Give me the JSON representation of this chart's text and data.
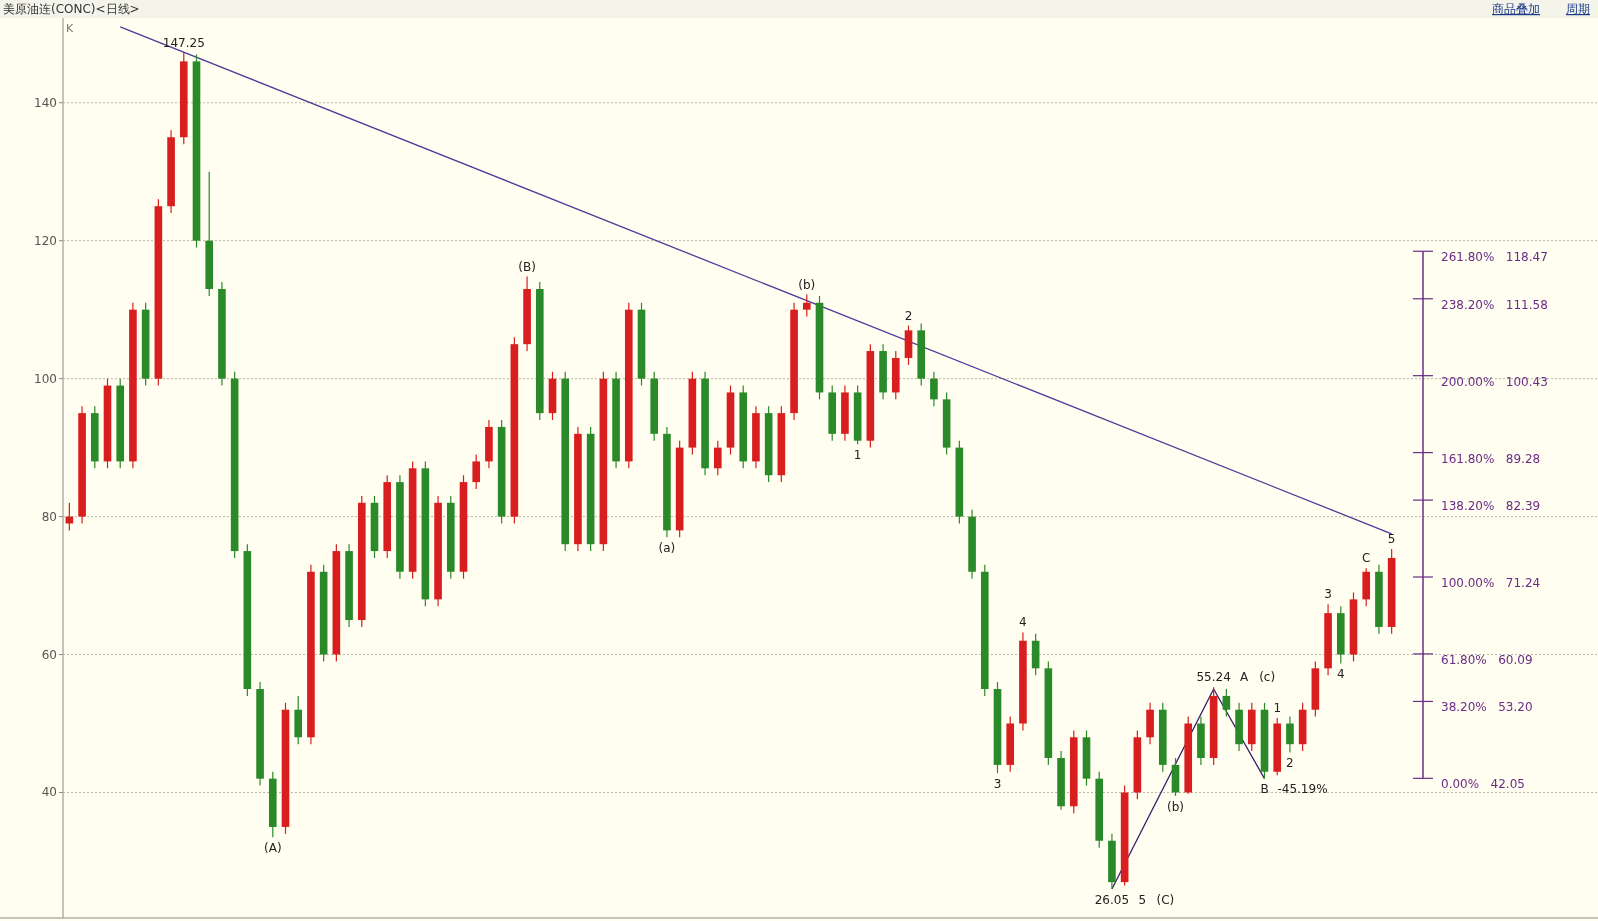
{
  "chart_data": {
    "type": "candlestick",
    "title": "美原油连(CONC)<日线>",
    "ylabel": "K",
    "categories": [
      null,
      null,
      null,
      null,
      null,
      null,
      null,
      null,
      null,
      null,
      null,
      null,
      null,
      null,
      null,
      null,
      null,
      null,
      null,
      null,
      null,
      null,
      null,
      null,
      null,
      null,
      null,
      null,
      null,
      null,
      null,
      null,
      null,
      null,
      null,
      null,
      null,
      null,
      null,
      null,
      null,
      null,
      null,
      null,
      null,
      null,
      null,
      null,
      null,
      null,
      null,
      null,
      null,
      null,
      null,
      null,
      null,
      null,
      null,
      null,
      null,
      null,
      null,
      null,
      null,
      null,
      null,
      null,
      null,
      null,
      null,
      null,
      null,
      null,
      null,
      null,
      null,
      null,
      null,
      null,
      null,
      null,
      null,
      null,
      null,
      null,
      null,
      null,
      null,
      null,
      null,
      null,
      null,
      null,
      null,
      null,
      null,
      null,
      null,
      null,
      null,
      null,
      null,
      null,
      null
    ],
    "ohlc": [
      [
        79,
        82,
        78,
        80
      ],
      [
        80,
        96,
        79,
        95
      ],
      [
        95,
        96,
        87,
        88
      ],
      [
        88,
        100,
        87,
        99
      ],
      [
        99,
        100,
        87,
        88
      ],
      [
        88,
        111,
        87,
        110
      ],
      [
        110,
        111,
        99,
        100
      ],
      [
        100,
        126,
        99,
        125
      ],
      [
        125,
        136,
        124,
        135
      ],
      [
        135,
        147.25,
        134,
        146
      ],
      [
        146,
        147,
        119,
        120
      ],
      [
        120,
        130,
        112,
        113
      ],
      [
        113,
        114,
        99,
        100
      ],
      [
        100,
        101,
        74,
        75
      ],
      [
        75,
        76,
        54,
        55
      ],
      [
        55,
        56,
        41,
        42
      ],
      [
        42,
        43,
        33.5,
        35
      ],
      [
        35,
        53,
        34,
        52
      ],
      [
        52,
        54,
        47,
        48
      ],
      [
        48,
        73,
        47,
        72
      ],
      [
        72,
        73,
        59,
        60
      ],
      [
        60,
        76,
        59,
        75
      ],
      [
        75,
        76,
        64,
        65
      ],
      [
        65,
        83,
        64,
        82
      ],
      [
        82,
        83,
        74,
        75
      ],
      [
        75,
        86,
        74,
        85
      ],
      [
        85,
        86,
        71,
        72
      ],
      [
        72,
        88,
        71,
        87
      ],
      [
        87,
        88,
        67,
        68
      ],
      [
        68,
        83,
        67,
        82
      ],
      [
        82,
        83,
        71,
        72
      ],
      [
        72,
        86,
        71,
        85
      ],
      [
        85,
        89,
        84,
        88
      ],
      [
        88,
        94,
        87,
        93
      ],
      [
        93,
        94,
        79,
        80
      ],
      [
        80,
        106,
        79,
        105
      ],
      [
        105,
        114.8,
        104,
        113
      ],
      [
        113,
        114,
        94,
        95
      ],
      [
        95,
        101,
        94,
        100
      ],
      [
        100,
        101,
        75,
        76
      ],
      [
        76,
        93,
        75,
        92
      ],
      [
        92,
        93,
        75,
        76
      ],
      [
        76,
        101,
        75,
        100
      ],
      [
        100,
        101,
        87,
        88
      ],
      [
        88,
        111,
        87,
        110
      ],
      [
        110,
        111,
        99,
        100
      ],
      [
        100,
        101,
        91,
        92
      ],
      [
        92,
        93,
        77,
        78
      ],
      [
        78,
        91,
        77,
        90
      ],
      [
        90,
        101,
        89,
        100
      ],
      [
        100,
        101,
        86,
        87
      ],
      [
        87,
        91,
        86,
        90
      ],
      [
        90,
        99,
        89,
        98
      ],
      [
        98,
        99,
        87,
        88
      ],
      [
        88,
        96,
        87,
        95
      ],
      [
        95,
        96,
        85,
        86
      ],
      [
        86,
        96,
        85,
        95
      ],
      [
        95,
        111,
        94,
        110
      ],
      [
        110,
        112.2,
        109,
        111
      ],
      [
        111,
        112,
        97,
        98
      ],
      [
        98,
        99,
        91,
        92
      ],
      [
        92,
        99,
        91,
        98
      ],
      [
        98,
        99,
        90.5,
        91
      ],
      [
        91,
        105,
        90,
        104
      ],
      [
        104,
        105,
        97,
        98
      ],
      [
        98,
        104,
        97,
        103
      ],
      [
        103,
        107.7,
        102,
        107
      ],
      [
        107,
        108,
        99,
        100
      ],
      [
        100,
        101,
        96,
        97
      ],
      [
        97,
        98,
        89,
        90
      ],
      [
        90,
        91,
        79,
        80
      ],
      [
        80,
        81,
        71,
        72
      ],
      [
        72,
        73,
        54,
        55
      ],
      [
        55,
        56,
        42.8,
        44
      ],
      [
        44,
        51,
        43,
        50
      ],
      [
        50,
        63.2,
        49,
        62
      ],
      [
        62,
        63,
        57,
        58
      ],
      [
        58,
        59,
        44,
        45
      ],
      [
        45,
        46,
        37.5,
        38
      ],
      [
        38,
        49,
        37,
        48
      ],
      [
        48,
        49,
        41,
        42
      ],
      [
        42,
        43,
        32,
        33
      ],
      [
        33,
        34,
        26.05,
        27
      ],
      [
        27,
        41,
        26.5,
        40
      ],
      [
        40,
        49,
        39,
        48
      ],
      [
        48,
        53,
        47,
        52
      ],
      [
        52,
        53,
        43,
        44
      ],
      [
        44,
        45,
        39.5,
        40
      ],
      [
        40,
        51,
        39.8,
        50
      ],
      [
        50,
        51,
        44,
        45
      ],
      [
        45,
        55.24,
        44,
        54
      ],
      [
        54,
        55,
        51,
        52
      ],
      [
        52,
        53,
        46,
        47
      ],
      [
        47,
        53,
        46,
        52
      ],
      [
        52,
        53,
        42.05,
        43
      ],
      [
        43,
        50.8,
        42.5,
        50
      ],
      [
        50,
        51,
        45.8,
        47
      ],
      [
        47,
        53,
        46,
        52
      ],
      [
        52,
        59,
        51,
        58
      ],
      [
        58,
        67.3,
        57,
        66
      ],
      [
        66,
        67,
        58.7,
        60
      ],
      [
        60,
        69,
        59,
        68
      ],
      [
        68,
        72.5,
        67,
        72
      ],
      [
        72,
        73,
        63,
        64
      ],
      [
        64,
        75.3,
        63,
        74
      ]
    ],
    "series": [
      {
        "type": "line",
        "color": "#4b3b9a",
        "values": [
          null,
          null,
          null,
          null,
          151,
          null,
          null,
          null,
          null,
          null,
          null,
          null,
          null,
          null,
          null,
          null,
          null,
          null,
          null,
          null,
          null,
          null,
          null,
          null,
          null,
          null,
          null,
          null,
          null,
          null,
          null,
          null,
          null,
          null,
          null,
          null,
          null,
          null,
          null,
          null,
          null,
          null,
          null,
          null,
          null,
          null,
          null,
          null,
          null,
          null,
          null,
          null,
          null,
          null,
          null,
          null,
          null,
          null,
          null,
          null,
          null,
          null,
          null,
          null,
          null,
          null,
          null,
          null,
          null,
          null,
          null,
          null,
          null,
          null,
          null,
          null,
          null,
          null,
          null,
          null,
          null,
          null,
          null,
          null,
          null,
          null,
          null,
          null,
          null,
          null,
          null,
          null,
          null,
          null,
          null,
          null,
          null,
          null,
          null,
          null,
          null,
          null,
          null,
          null,
          77.5
        ]
      },
      {
        "type": "line",
        "color": "#3a1e6e",
        "values": [
          null,
          null,
          null,
          null,
          null,
          null,
          null,
          null,
          null,
          null,
          null,
          null,
          null,
          null,
          null,
          null,
          null,
          null,
          null,
          null,
          null,
          null,
          null,
          null,
          null,
          null,
          null,
          null,
          null,
          null,
          null,
          null,
          null,
          null,
          null,
          null,
          null,
          null,
          null,
          null,
          null,
          null,
          null,
          null,
          null,
          null,
          null,
          null,
          null,
          null,
          null,
          null,
          null,
          null,
          null,
          null,
          null,
          null,
          null,
          null,
          null,
          null,
          null,
          null,
          null,
          null,
          null,
          null,
          null,
          null,
          null,
          null,
          null,
          null,
          null,
          null,
          null,
          null,
          null,
          null,
          null,
          null,
          26,
          null,
          null,
          null,
          null,
          null,
          null,
          null,
          55,
          null,
          null,
          null,
          42,
          null,
          null,
          null,
          null,
          null,
          null,
          null,
          null,
          null,
          null
        ]
      }
    ],
    "ylim": [
      21.8,
      152
    ],
    "yticks": [
      40,
      60,
      80,
      100,
      120,
      140
    ],
    "grid": "y",
    "ref_lines": [
      {
        "axis": "y",
        "value": 118.47,
        "label": "261.80%   118.47"
      },
      {
        "axis": "y",
        "value": 111.58,
        "label": "238.20%   111.58"
      },
      {
        "axis": "y",
        "value": 100.43,
        "label": "200.00%   100.43"
      },
      {
        "axis": "y",
        "value": 89.28,
        "label": "161.80%   89.28"
      },
      {
        "axis": "y",
        "value": 82.39,
        "label": "138.20%   82.39"
      },
      {
        "axis": "y",
        "value": 71.24,
        "label": "100.00%   71.24"
      },
      {
        "axis": "y",
        "value": 60.09,
        "label": "61.80%   60.09"
      },
      {
        "axis": "y",
        "value": 53.2,
        "label": "38.20%   53.20"
      },
      {
        "axis": "y",
        "value": 42.05,
        "label": "0.00%   42.05"
      }
    ],
    "annotations": [
      "商品叠加",
      "周期",
      {
        "text": "147.25",
        "y": 147.25
      },
      {
        "text": "(A)",
        "y": 33.5
      },
      {
        "text": "(B)",
        "y": 114.8
      },
      {
        "text": "(a)",
        "y": 77
      },
      {
        "text": "(b)",
        "y": 112.2
      },
      {
        "text": "1",
        "y": 90.5
      },
      {
        "text": "2",
        "y": 107.7
      },
      {
        "text": "3",
        "y": 42.8
      },
      {
        "text": "4",
        "y": 63.2
      },
      {
        "text": "26.05",
        "y": 26.05
      },
      "5",
      "(C)",
      {
        "text": "(b)",
        "y": 39.5
      },
      {
        "text": "55.24",
        "y": 55.24
      },
      "A",
      "(c)",
      {
        "text": "B",
        "y": 42.05
      },
      "-45.19%",
      {
        "text": "1",
        "y": 50.8
      },
      {
        "text": "2",
        "y": 45.8
      },
      {
        "text": "3",
        "y": 67.3
      },
      {
        "text": "4",
        "y": 58.7
      },
      {
        "text": "C",
        "y": 72.5
      },
      {
        "text": "5",
        "y": 75.3
      }
    ]
  }
}
